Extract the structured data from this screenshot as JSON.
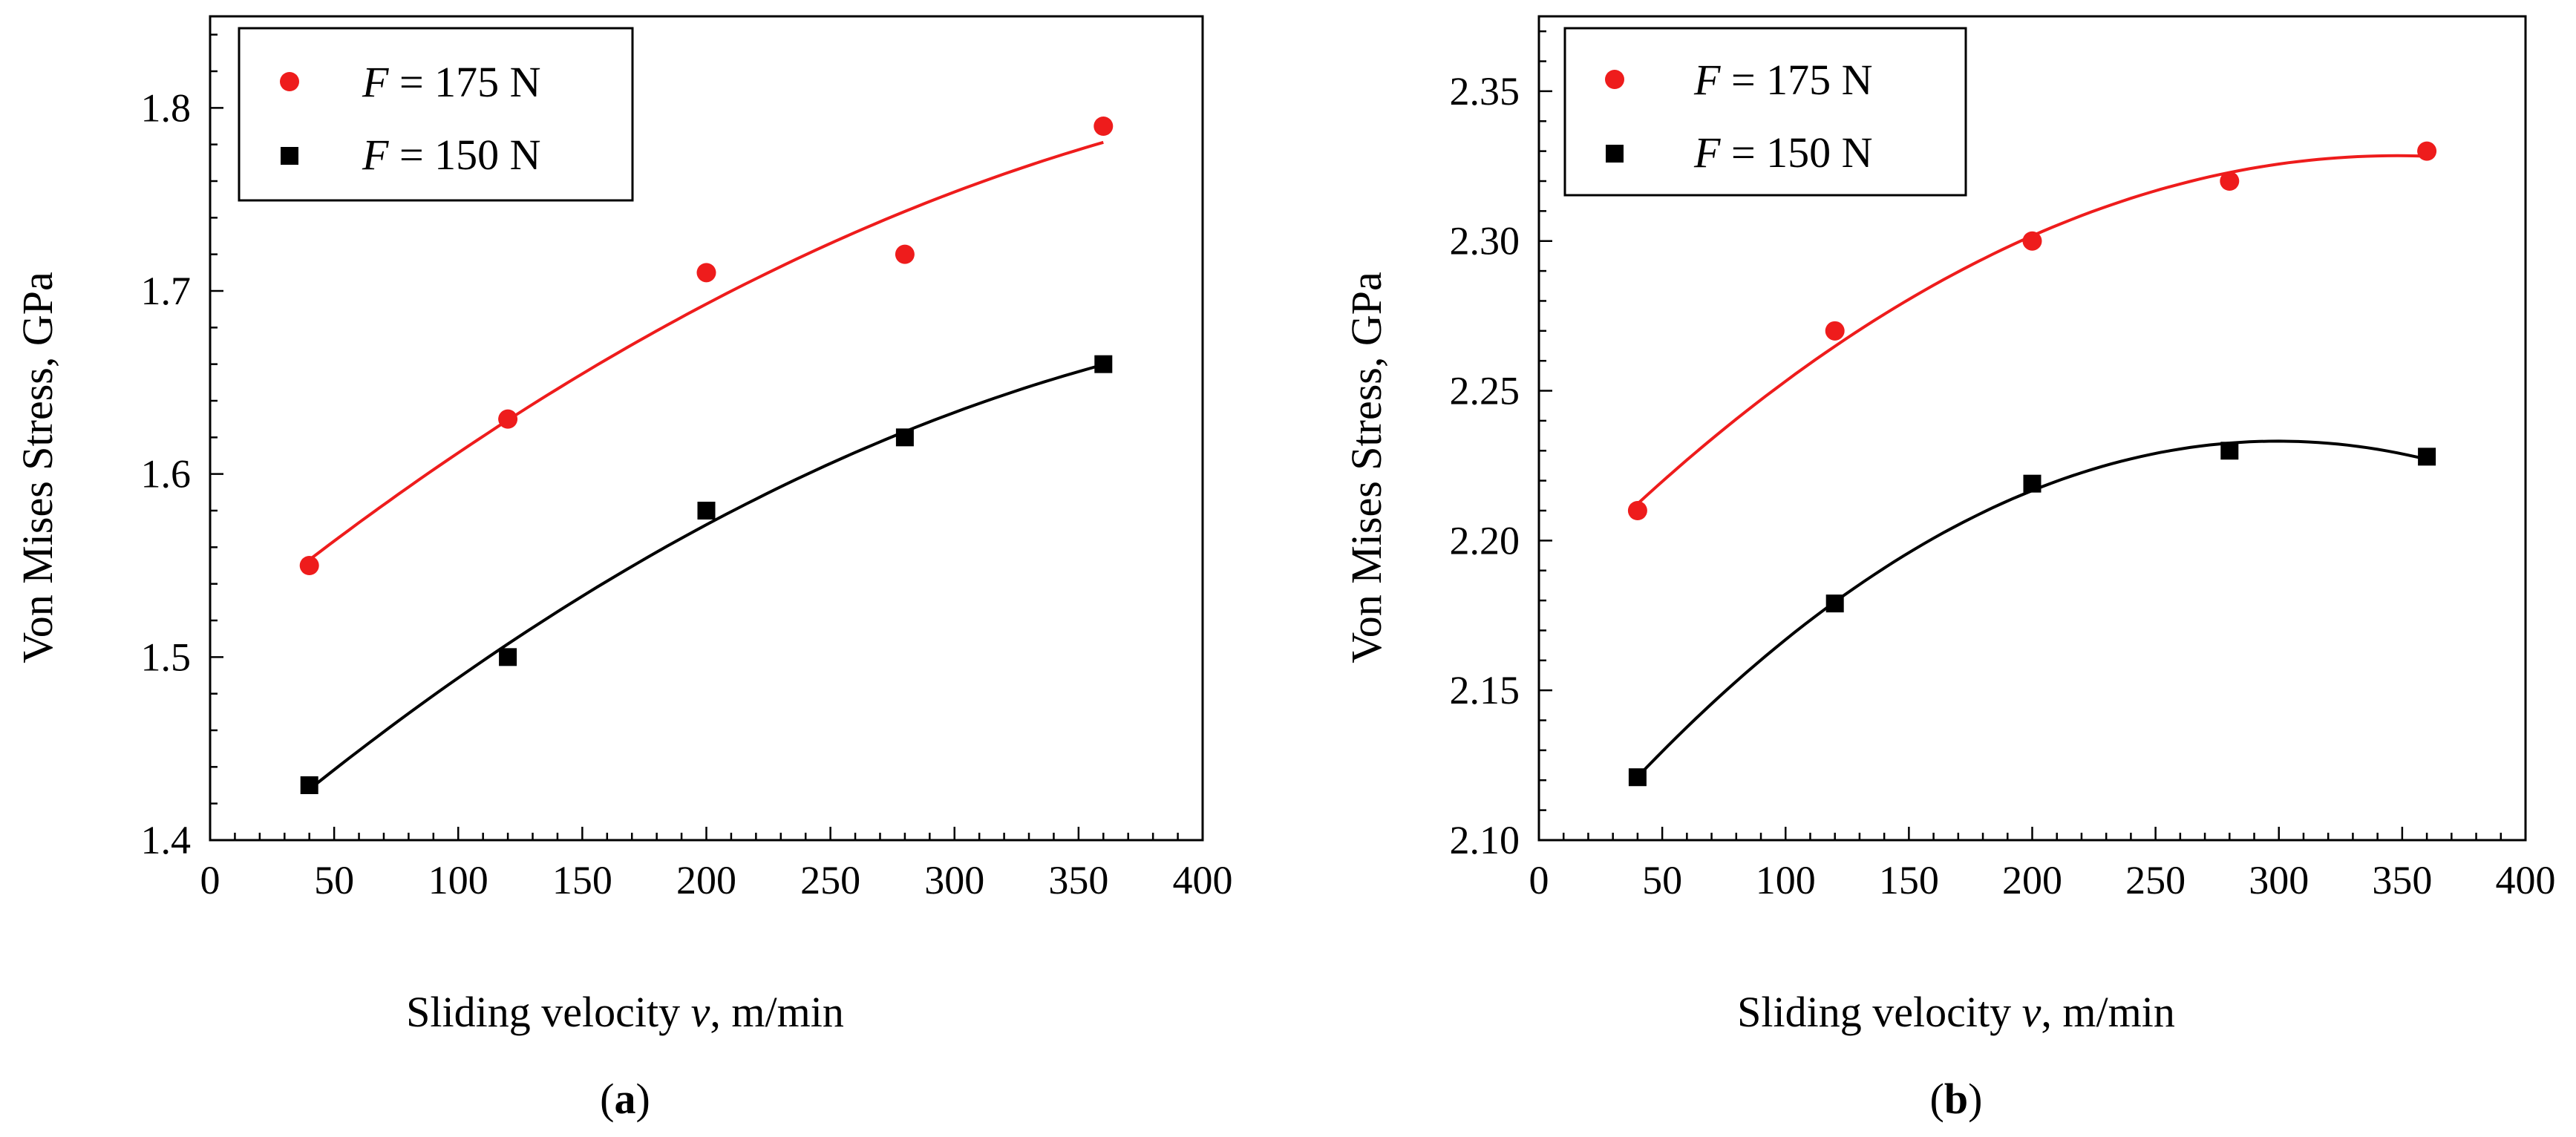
{
  "colors": {
    "red": "#ee1c1c",
    "black": "#000000"
  },
  "chart_data": [
    {
      "type": "scatter",
      "caption": "(a)",
      "caption_letter": "a",
      "xlabel_prefix": "Sliding velocity ",
      "xlabel_var": "v",
      "xlabel_suffix": ", m/min",
      "ylabel": "Von Mises Stress, GPa",
      "xlim": [
        0,
        400
      ],
      "ylim": [
        1.4,
        1.85
      ],
      "xticks": [
        0,
        50,
        100,
        150,
        200,
        250,
        300,
        350,
        400
      ],
      "yticks": [
        "1.4",
        "1.5",
        "1.6",
        "1.7",
        "1.8"
      ],
      "legend_position": "top-left",
      "series": [
        {
          "name": "F = 175 N",
          "legend_var": "F",
          "legend_rest": " = 175 N",
          "color": "#ee1c1c",
          "marker": "circle",
          "x": [
            40,
            120,
            200,
            280,
            360
          ],
          "values": [
            1.55,
            1.63,
            1.71,
            1.72,
            1.79
          ],
          "trend": "fitted curve"
        },
        {
          "name": "F = 150 N",
          "legend_var": "F",
          "legend_rest": " = 150 N",
          "color": "#000000",
          "marker": "square",
          "x": [
            40,
            120,
            200,
            280,
            360
          ],
          "values": [
            1.43,
            1.5,
            1.58,
            1.62,
            1.66
          ],
          "trend": "fitted curve"
        }
      ]
    },
    {
      "type": "scatter",
      "caption": "(b)",
      "caption_letter": "b",
      "xlabel_prefix": "Sliding velocity ",
      "xlabel_var": "v",
      "xlabel_suffix": ", m/min",
      "ylabel": "Von Mises Stress, GPa",
      "xlim": [
        0,
        400
      ],
      "ylim": [
        2.1,
        2.375
      ],
      "xticks": [
        0,
        50,
        100,
        150,
        200,
        250,
        300,
        350,
        400
      ],
      "yticks": [
        "2.10",
        "2.15",
        "2.20",
        "2.25",
        "2.30",
        "2.35"
      ],
      "legend_position": "top-left",
      "series": [
        {
          "name": "F = 175 N",
          "legend_var": "F",
          "legend_rest": " = 175 N",
          "color": "#ee1c1c",
          "marker": "circle",
          "x": [
            40,
            120,
            200,
            280,
            360
          ],
          "values": [
            2.21,
            2.27,
            2.3,
            2.32,
            2.33
          ],
          "trend": "fitted curve"
        },
        {
          "name": "F = 150 N",
          "legend_var": "F",
          "legend_rest": " = 150 N",
          "color": "#000000",
          "marker": "square",
          "x": [
            40,
            120,
            200,
            280,
            360
          ],
          "values": [
            2.121,
            2.179,
            2.219,
            2.23,
            2.228
          ],
          "trend": "fitted curve"
        }
      ]
    }
  ]
}
